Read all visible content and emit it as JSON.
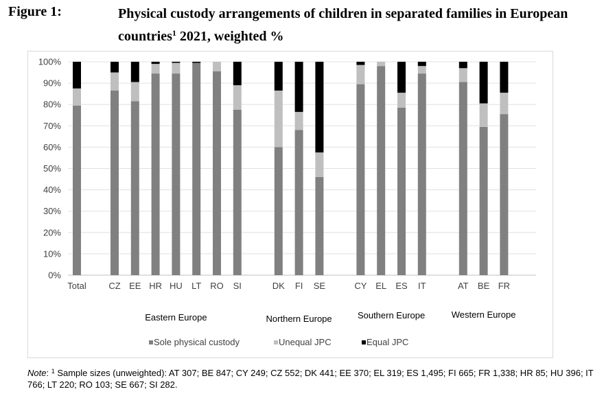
{
  "figure": {
    "label": "Figure 1:",
    "title_part1": "Physical custody arrangements of children in separated families in European countries",
    "title_sup": "1",
    "title_part2": " 2021, weighted %"
  },
  "note": {
    "label": "Note",
    "sup": "1",
    "text": " Sample sizes (unweighted): AT 307; BE 847; CY 249; CZ 552; DK 441; EE 370; EL 319; ES 1,495; FI 665; FR 1,338; HR 85; HU 396; IT 766; LT 220; RO 103; SE 667; SI 282."
  },
  "chart_data": {
    "type": "bar",
    "stacked": true,
    "categories": [
      "Total",
      "CZ",
      "EE",
      "HR",
      "HU",
      "LT",
      "RO",
      "SI",
      "DK",
      "FI",
      "SE",
      "CY",
      "EL",
      "ES",
      "IT",
      "AT",
      "BE",
      "FR"
    ],
    "series": [
      {
        "name": "Sole physical custody",
        "color": "#808080",
        "values": [
          79.5,
          86.5,
          81.5,
          94.5,
          94.5,
          99.5,
          95.5,
          77.5,
          60,
          68,
          46,
          89.5,
          98,
          78.5,
          94.5,
          90.5,
          69.5,
          75.5
        ]
      },
      {
        "name": "Unequal JPC",
        "color": "#bfbfbf",
        "values": [
          8,
          8.5,
          9,
          4.5,
          5,
          0,
          4.5,
          11.5,
          26.5,
          8.5,
          11.5,
          9,
          2,
          7,
          3.5,
          6.5,
          11,
          10
        ]
      },
      {
        "name": "Equal JPC",
        "color": "#000000",
        "values": [
          12.5,
          5,
          9.5,
          1,
          0.5,
          0.5,
          0,
          11,
          13.5,
          23.5,
          42.5,
          1.5,
          0,
          14.5,
          2,
          3,
          19.5,
          14.5
        ]
      }
    ],
    "y_ticks": [
      "0%",
      "10%",
      "20%",
      "30%",
      "40%",
      "50%",
      "60%",
      "70%",
      "80%",
      "90%",
      "100%"
    ],
    "ylim": [
      0,
      100
    ],
    "groups": [
      {
        "label": "Eastern Europe",
        "members": [
          "CZ",
          "EE",
          "HR",
          "HU",
          "LT",
          "RO",
          "SI"
        ]
      },
      {
        "label": "Northern Europe",
        "members": [
          "DK",
          "FI",
          "SE"
        ]
      },
      {
        "label": "Southern Europe",
        "members": [
          "CY",
          "EL",
          "ES",
          "IT"
        ]
      },
      {
        "label": "Western Europe",
        "members": [
          "AT",
          "BE",
          "FR"
        ]
      }
    ],
    "grid": true,
    "legend_position": "bottom"
  }
}
